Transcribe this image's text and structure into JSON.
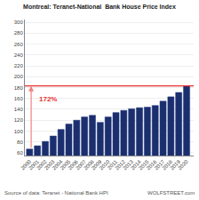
{
  "chart_data": {
    "type": "bar",
    "title": "Montreal: Teranet-National  Bank House Price Index",
    "x": [
      2000,
      2001,
      2002,
      2003,
      2004,
      2005,
      2006,
      2007,
      2008,
      2009,
      2010,
      2011,
      2012,
      2013,
      2014,
      2015,
      2016,
      2017,
      2018,
      2019,
      2020
    ],
    "values": [
      67,
      73,
      81,
      91,
      103,
      113,
      120,
      126,
      129,
      116,
      126,
      134,
      138,
      141,
      143,
      144,
      147,
      155,
      163,
      171,
      183
    ],
    "color": "#1b2f6e",
    "edge_color": "#253a80",
    "xlim": [
      1999.4,
      2020.9
    ],
    "xticks": [
      2000,
      2001,
      2002,
      2003,
      2004,
      2005,
      2006,
      2007,
      2008,
      2009,
      2010,
      2011,
      2012,
      2013,
      2014,
      2015,
      2016,
      2017,
      2018,
      2019,
      2020
    ],
    "ylim": [
      55,
      305
    ],
    "yticks": [
      60,
      80,
      100,
      120,
      140,
      160,
      180,
      200,
      220,
      240,
      260,
      280,
      300
    ],
    "grid": true,
    "hline": {
      "value": 183,
      "color": "#e83030"
    },
    "arrow": {
      "x": 2000.2,
      "from": 67,
      "to": 183,
      "color": "#f08080"
    },
    "annotations": [
      {
        "text": "172%",
        "x": 2001.0,
        "y": 148,
        "color": "#e83030"
      }
    ],
    "source": [
      "Source of data: Teranet - National Bank HPI",
      "WOLFSTREET.com"
    ]
  }
}
